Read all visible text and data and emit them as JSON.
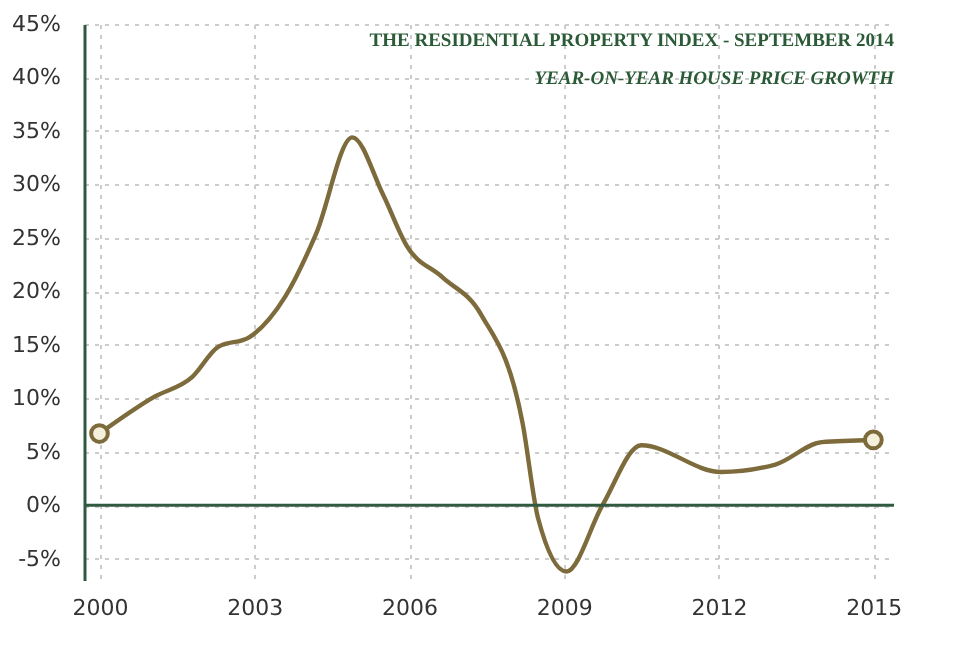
{
  "chart_data": {
    "type": "line",
    "title": "THE RESIDENTIAL PROPERTY INDEX - SEPTEMBER 2014",
    "subtitle": "YEAR-ON-YEAR HOUSE PRICE GROWTH",
    "series": [
      {
        "color": "#7d6b3c",
        "x": [
          2000,
          2001.05,
          2001.8,
          2002.3,
          2002.9,
          2003.6,
          2004.2,
          2004.9,
          2005.5,
          2005.95,
          2006.65,
          2007.4,
          2008.2,
          2008.5,
          2009.05,
          2009.75,
          2010.5,
          2012.05,
          2013.1,
          2014.0,
          2015
        ],
        "values": [
          6.7,
          10.1,
          12.0,
          14.8,
          15.7,
          19.5,
          25.4,
          34.4,
          29.0,
          24.3,
          21.3,
          17.8,
          7.7,
          -1.2,
          -6.2,
          0,
          5.6,
          3.1,
          3.8,
          5.9,
          6.1
        ]
      },
      {
        "type": "scatter",
        "color": "#7d6b3c",
        "marker": "circle",
        "x": [
          2000,
          2015
        ],
        "values": [
          6.7,
          6.1
        ]
      }
    ],
    "xlim": [
      1999.7,
      2015.4
    ],
    "xticks": [
      2000,
      2003,
      2006,
      2009,
      2012,
      2015
    ],
    "ylim": [
      -7,
      45
    ],
    "yticks": [
      {
        "value": -5,
        "label": "-5%"
      },
      {
        "value": 0,
        "label": "0%"
      },
      {
        "value": 5,
        "label": "5%"
      },
      {
        "value": 10,
        "label": "10%"
      },
      {
        "value": 15,
        "label": "15%"
      },
      {
        "value": 20,
        "label": "20%"
      },
      {
        "value": 25,
        "label": "25%"
      },
      {
        "value": 30,
        "label": "30%"
      },
      {
        "value": 35,
        "label": "35%"
      },
      {
        "value": 40,
        "label": "40%"
      },
      {
        "value": 45,
        "label": "45%"
      }
    ],
    "ref_lines": [
      {
        "axis": "y",
        "value": 0,
        "color": "#2f5a3f"
      }
    ],
    "grid": true,
    "marker": "none",
    "line_style": "solid"
  }
}
